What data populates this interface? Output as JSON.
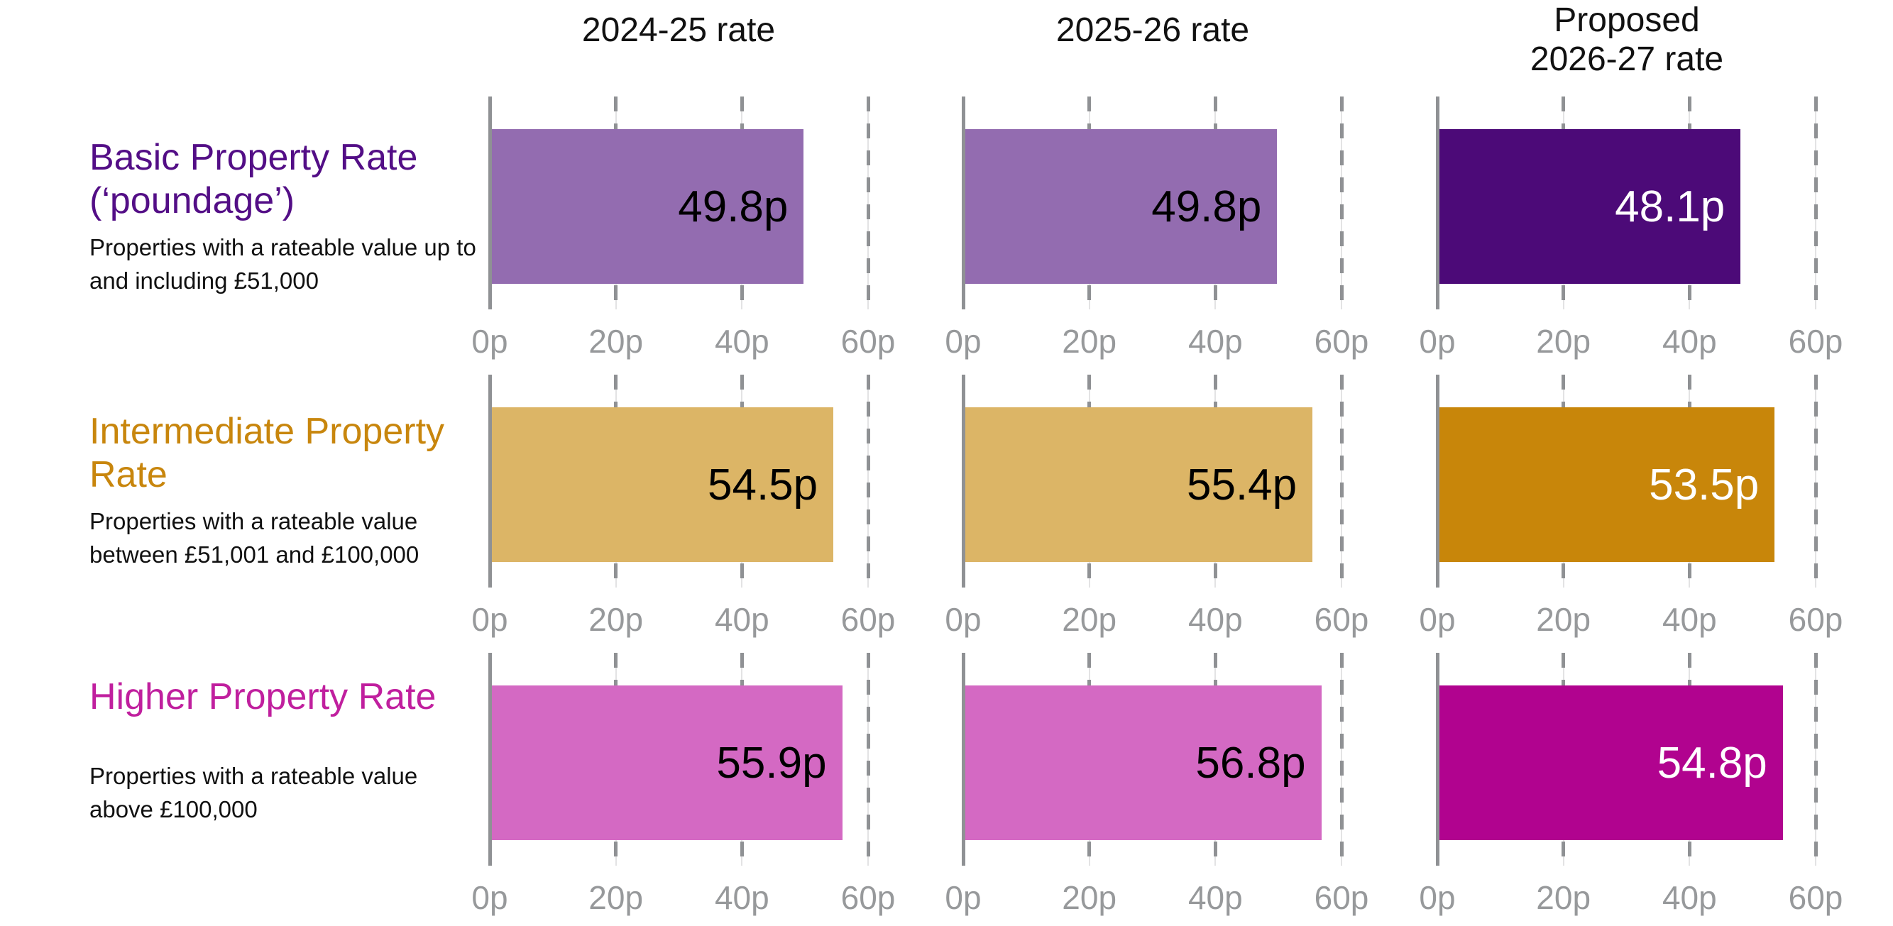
{
  "chart_data": {
    "type": "bar",
    "orientation": "horizontal",
    "unit": "pence per pound (p)",
    "xlim": [
      0,
      60
    ],
    "x_ticks": [
      {
        "label": "0p",
        "value": 0
      },
      {
        "label": "20p",
        "value": 20
      },
      {
        "label": "40p",
        "value": 40
      },
      {
        "label": "60p",
        "value": 60
      }
    ],
    "grid": "dashed-vertical",
    "column_headers": [
      {
        "line1": "2024-25 rate",
        "line2": ""
      },
      {
        "line1": "2025-26 rate",
        "line2": ""
      },
      {
        "line1": "Proposed",
        "line2": "2026-27 rate"
      }
    ],
    "categories": [
      "Basic Property Rate (‘poundage’)",
      "Intermediate Property Rate",
      "Higher Property Rate"
    ],
    "series": [
      {
        "name": "2024-25 rate",
        "values": [
          49.8,
          54.5,
          55.9
        ]
      },
      {
        "name": "2025-26 rate",
        "values": [
          49.8,
          55.4,
          56.8
        ]
      },
      {
        "name": "Proposed 2026-27 rate",
        "values": [
          48.1,
          53.5,
          54.8
        ]
      }
    ],
    "rows": [
      {
        "title": "Basic Property Rate (‘poundage’)",
        "description": "Properties with a rateable value up to and including £51,000",
        "title_color": "#530e86",
        "cells": [
          {
            "column": "2024-25 rate",
            "value": 49.8,
            "label": "49.8p",
            "bar_color": "#936cb0",
            "text_color": "#000000"
          },
          {
            "column": "2025-26 rate",
            "value": 49.8,
            "label": "49.8p",
            "bar_color": "#936cb0",
            "text_color": "#000000"
          },
          {
            "column": "Proposed 2026-27 rate",
            "value": 48.1,
            "label": "48.1p",
            "bar_color": "#4c0a78",
            "text_color": "#ffffff"
          }
        ]
      },
      {
        "title": "Intermediate Property Rate",
        "description": "Properties with a rateable value between £51,001 and £100,000",
        "title_color": "#c8860d",
        "cells": [
          {
            "column": "2024-25 rate",
            "value": 54.5,
            "label": "54.5p",
            "bar_color": "#dcb566",
            "text_color": "#000000"
          },
          {
            "column": "2025-26 rate",
            "value": 55.4,
            "label": "55.4p",
            "bar_color": "#dcb566",
            "text_color": "#000000"
          },
          {
            "column": "Proposed 2026-27 rate",
            "value": 53.5,
            "label": "53.5p",
            "bar_color": "#c8860a",
            "text_color": "#ffffff"
          }
        ]
      },
      {
        "title": "Higher Property Rate",
        "description": "Properties with a rateable value above £100,000",
        "title_color": "#c01f9e",
        "cells": [
          {
            "column": "2024-25 rate",
            "value": 55.9,
            "label": "55.9p",
            "bar_color": "#d469c3",
            "text_color": "#000000"
          },
          {
            "column": "2025-26 rate",
            "value": 56.8,
            "label": "56.8p",
            "bar_color": "#d469c3",
            "text_color": "#000000"
          },
          {
            "column": "Proposed 2026-27 rate",
            "value": 54.8,
            "label": "54.8p",
            "bar_color": "#b1038f",
            "text_color": "#ffffff"
          }
        ]
      }
    ],
    "colors": {
      "axis": "#8f9194",
      "gridline_dash": "#8f9194",
      "gridline_thin": "#e3e3e4",
      "tick_text": "#97999b"
    }
  }
}
